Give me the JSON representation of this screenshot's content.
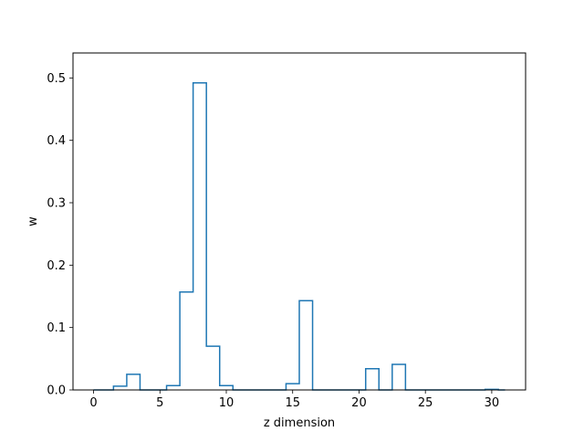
{
  "chart_data": {
    "type": "step",
    "title": "",
    "xlabel": "z dimension",
    "ylabel": "w",
    "xlim": [
      -1.55,
      32.55
    ],
    "ylim": [
      0,
      0.54
    ],
    "xticks": [
      0,
      5,
      10,
      15,
      20,
      25,
      30
    ],
    "xtick_labels": [
      "0",
      "5",
      "10",
      "15",
      "20",
      "25",
      "30"
    ],
    "yticks": [
      0.0,
      0.1,
      0.2,
      0.3,
      0.4,
      0.5
    ],
    "ytick_labels": [
      "0.0",
      "0.1",
      "0.2",
      "0.3",
      "0.4",
      "0.5"
    ],
    "grid": false,
    "line_color": "#1f77b4",
    "series": [
      {
        "x": [
          0,
          1,
          2,
          3,
          4,
          5,
          6,
          7,
          8,
          9,
          10,
          11,
          12,
          13,
          14,
          15,
          16,
          17,
          18,
          19,
          20,
          21,
          22,
          23,
          24,
          25,
          26,
          27,
          28,
          29,
          30,
          31
        ],
        "values": [
          0.0,
          0.0,
          0.006,
          0.025,
          0.0,
          0.0,
          0.007,
          0.157,
          0.492,
          0.07,
          0.007,
          0.0,
          0.0,
          0.0,
          0.0,
          0.01,
          0.143,
          0.0,
          0.0,
          0.0,
          0.0,
          0.034,
          0.0,
          0.041,
          0.0,
          0.0,
          0.0,
          0.0,
          0.0,
          0.0,
          0.001,
          0.0
        ]
      }
    ]
  }
}
